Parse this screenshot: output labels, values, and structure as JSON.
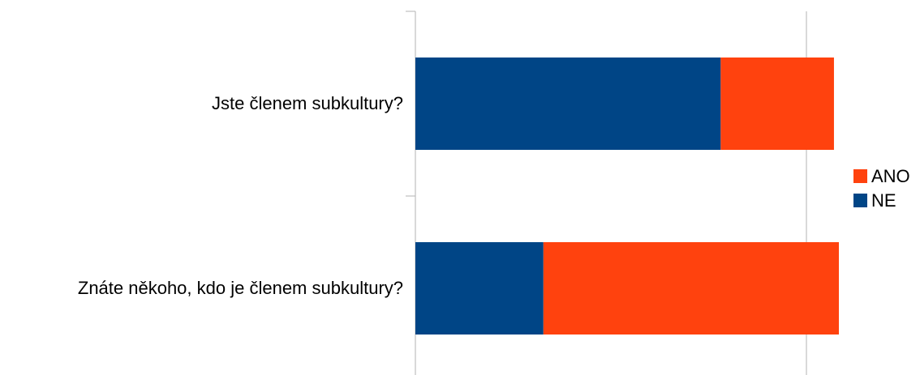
{
  "chart_data": {
    "type": "bar",
    "orientation": "horizontal",
    "stacked": true,
    "categories": [
      "Jste členem subkultury?",
      "Znáte někoho, kdo je členem subkultury?"
    ],
    "series": [
      {
        "name": "NE",
        "values": [
          62,
          26
        ],
        "color": "#004586"
      },
      {
        "name": "ANO",
        "values": [
          23,
          60
        ],
        "color": "#ff420e"
      }
    ],
    "xlim": [
      0,
      100
    ],
    "grid": false,
    "legend_position": "right",
    "legend_order": [
      "ANO",
      "NE"
    ]
  }
}
